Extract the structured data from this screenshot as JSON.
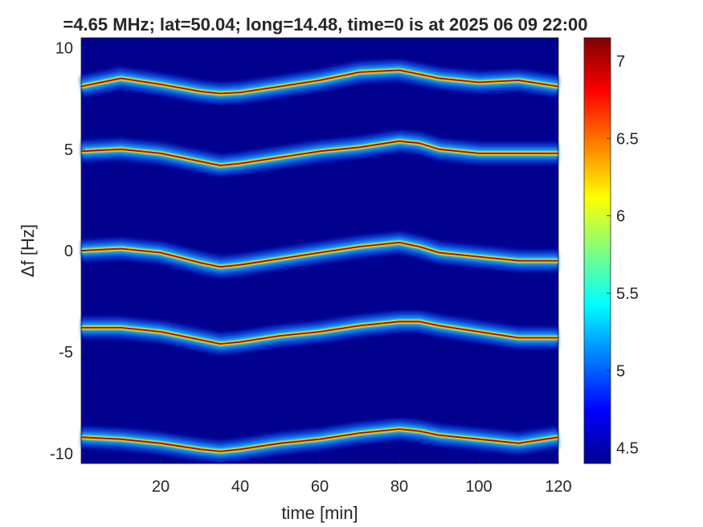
{
  "chart_data": {
    "type": "heatmap",
    "title": "=4.65 MHz;  lat=50.04; long=14.48, time=0 is at 2025 06 09 22:00",
    "xlabel": "time [min]",
    "ylabel": "Δf [Hz]",
    "xlim": [
      0,
      120
    ],
    "ylim": [
      -10.5,
      10.5
    ],
    "xticks": [
      20,
      40,
      60,
      80,
      100,
      120
    ],
    "xtick_labels": [
      "20",
      "40",
      "60",
      "80",
      "100",
      "120"
    ],
    "yticks": [
      10,
      5,
      0,
      -5,
      -10
    ],
    "ytick_labels": [
      "10",
      "5",
      "0",
      "-5",
      "-10"
    ],
    "colorbar": {
      "range": [
        4.4,
        7.15
      ],
      "ticks": [
        4.5,
        5,
        5.5,
        6,
        6.5,
        7
      ],
      "tick_labels": [
        "4.5",
        "5",
        "5.5",
        "6",
        "6.5",
        "7"
      ],
      "colormap": "jet"
    },
    "background_color": "#00008f",
    "trace_color": "#b40000",
    "x_samples": [
      0,
      10,
      20,
      30,
      35,
      40,
      50,
      60,
      70,
      80,
      85,
      90,
      100,
      110,
      120
    ],
    "series": [
      {
        "values": [
          8.1,
          8.5,
          8.2,
          7.85,
          7.75,
          7.8,
          8.1,
          8.4,
          8.8,
          8.9,
          8.7,
          8.5,
          8.3,
          8.4,
          8.1
        ]
      },
      {
        "values": [
          4.9,
          5.0,
          4.8,
          4.4,
          4.2,
          4.3,
          4.6,
          4.9,
          5.1,
          5.4,
          5.3,
          5.0,
          4.8,
          4.8,
          4.8
        ]
      },
      {
        "values": [
          0.0,
          0.1,
          -0.1,
          -0.6,
          -0.8,
          -0.7,
          -0.4,
          -0.1,
          0.2,
          0.4,
          0.2,
          -0.1,
          -0.3,
          -0.5,
          -0.5
        ]
      },
      {
        "values": [
          -3.8,
          -3.8,
          -4.0,
          -4.4,
          -4.6,
          -4.5,
          -4.2,
          -4.0,
          -3.7,
          -3.5,
          -3.5,
          -3.7,
          -4.0,
          -4.3,
          -4.3
        ]
      },
      {
        "values": [
          -9.2,
          -9.3,
          -9.5,
          -9.8,
          -9.9,
          -9.8,
          -9.5,
          -9.3,
          -9.0,
          -8.8,
          -8.9,
          -9.1,
          -9.3,
          -9.5,
          -9.2
        ]
      }
    ]
  }
}
